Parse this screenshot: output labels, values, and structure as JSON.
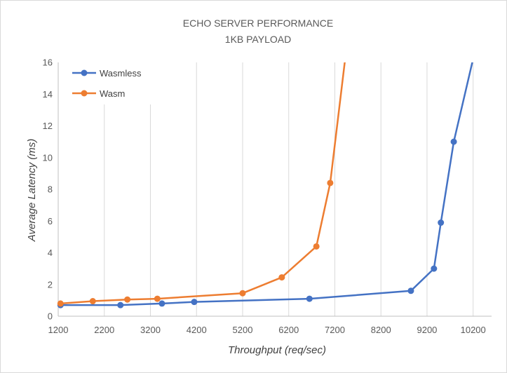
{
  "chart_data": {
    "type": "line",
    "title": "ECHO SERVER PERFORMANCE",
    "subtitle": "1KB PAYLOAD",
    "xlabel": "Throughput (req/sec)",
    "ylabel": "Average Latency (ms)",
    "xlim": [
      1200,
      10600
    ],
    "ylim": [
      0,
      16
    ],
    "x_ticks": [
      1200,
      2200,
      3200,
      4200,
      5200,
      6200,
      7200,
      8200,
      9200,
      10200
    ],
    "y_ticks": [
      0,
      2,
      4,
      6,
      8,
      10,
      12,
      14,
      16
    ],
    "grid": "vertical",
    "legend_position": "top-left",
    "series": [
      {
        "name": "Wasmless",
        "color": "#4472c4",
        "points": [
          {
            "x": 1250,
            "y": 0.7
          },
          {
            "x": 2550,
            "y": 0.7
          },
          {
            "x": 3450,
            "y": 0.8
          },
          {
            "x": 4150,
            "y": 0.9
          },
          {
            "x": 6650,
            "y": 1.1
          },
          {
            "x": 8850,
            "y": 1.6
          },
          {
            "x": 9350,
            "y": 3.0
          },
          {
            "x": 9500,
            "y": 5.9
          },
          {
            "x": 9780,
            "y": 11.0
          },
          {
            "x": 10230,
            "y": 16.6
          }
        ]
      },
      {
        "name": "Wasm",
        "color": "#ed7d31",
        "points": [
          {
            "x": 1250,
            "y": 0.8
          },
          {
            "x": 1950,
            "y": 0.95
          },
          {
            "x": 2700,
            "y": 1.05
          },
          {
            "x": 3350,
            "y": 1.1
          },
          {
            "x": 5200,
            "y": 1.45
          },
          {
            "x": 6050,
            "y": 2.45
          },
          {
            "x": 6800,
            "y": 4.4
          },
          {
            "x": 7100,
            "y": 8.4
          },
          {
            "x": 7440,
            "y": 16.6
          }
        ]
      }
    ]
  }
}
